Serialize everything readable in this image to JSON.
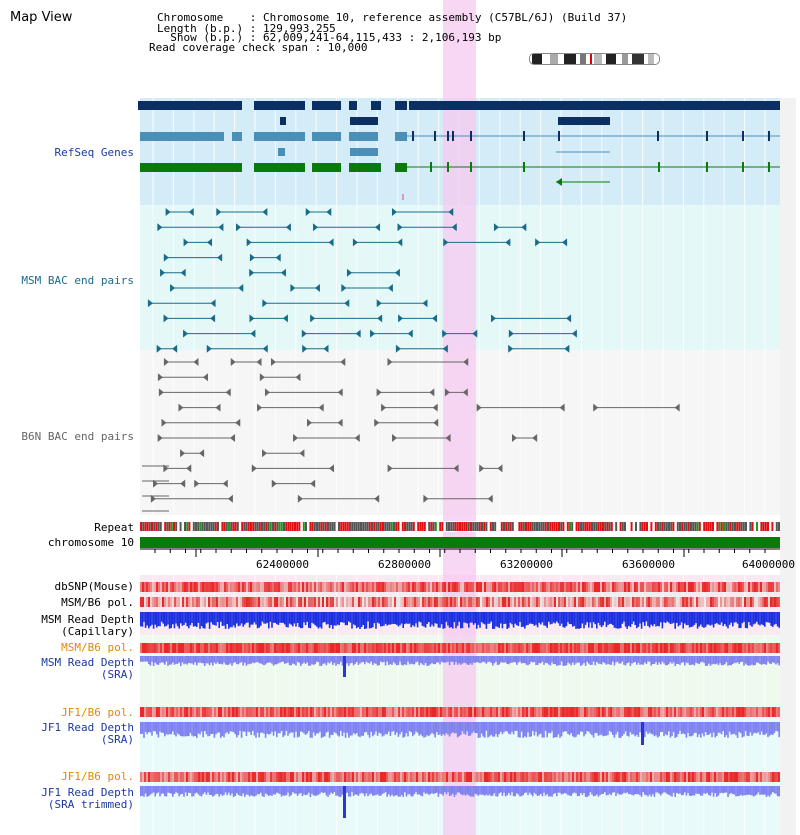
{
  "app": {
    "title": "Map View"
  },
  "header": {
    "lines": [
      "Chromosome    : Chromosome 10, reference assembly (C57BL/6J) (Build 37)",
      "Length (b.p.) : 129,993,255",
      "  Show (b.p.) : 62,009,241-64,115,433 : 2,106,193 bp",
      "Read coverage check span : 10,000"
    ]
  },
  "tracks": {
    "refseq": "RefSeq Genes",
    "msm_bac": "MSM BAC end pairs",
    "b6n_bac": "B6N BAC end pairs",
    "repeat": "Repeat",
    "chromosome": "chromosome 10",
    "dbsnp": "dbSNP(Mouse)",
    "msm_b6_pol_1": "MSM/B6 pol.",
    "msm_depth_cap_1": "MSM Read Depth",
    "msm_depth_cap_2": "(Capillary)",
    "msm_b6_pol_2": "MSM/B6 pol.",
    "msm_depth_sra_1": "MSM Read Depth",
    "msm_depth_sra_2": "(SRA)",
    "jf1_pol_1": "JF1/B6 pol.",
    "jf1_depth_sra_1": "JF1 Read Depth",
    "jf1_depth_sra_2": "(SRA)",
    "jf1_pol_2": "JF1/B6 pol.",
    "jf1_depth_trim_1": "JF1 Read Depth",
    "jf1_depth_trim_2": "(SRA trimmed)"
  },
  "axis": {
    "ticks": [
      "62400000",
      "62800000",
      "63200000",
      "63600000",
      "64000000"
    ]
  },
  "colors": {
    "refseq_dark": "#0b2f63",
    "refseq_light": "#4a8fb8",
    "refseq_green": "#0a7a0a",
    "msm_bac": "#1a6b8a",
    "b6n_bac": "#666666",
    "chrom_green": "#0a7a0a",
    "depth_blue": "#1a2fe0",
    "depth_light": "#7f82ee",
    "highlight": "#f5c9f0",
    "label_blue": "#1a3a9e",
    "label_orange": "#e08a00"
  }
}
